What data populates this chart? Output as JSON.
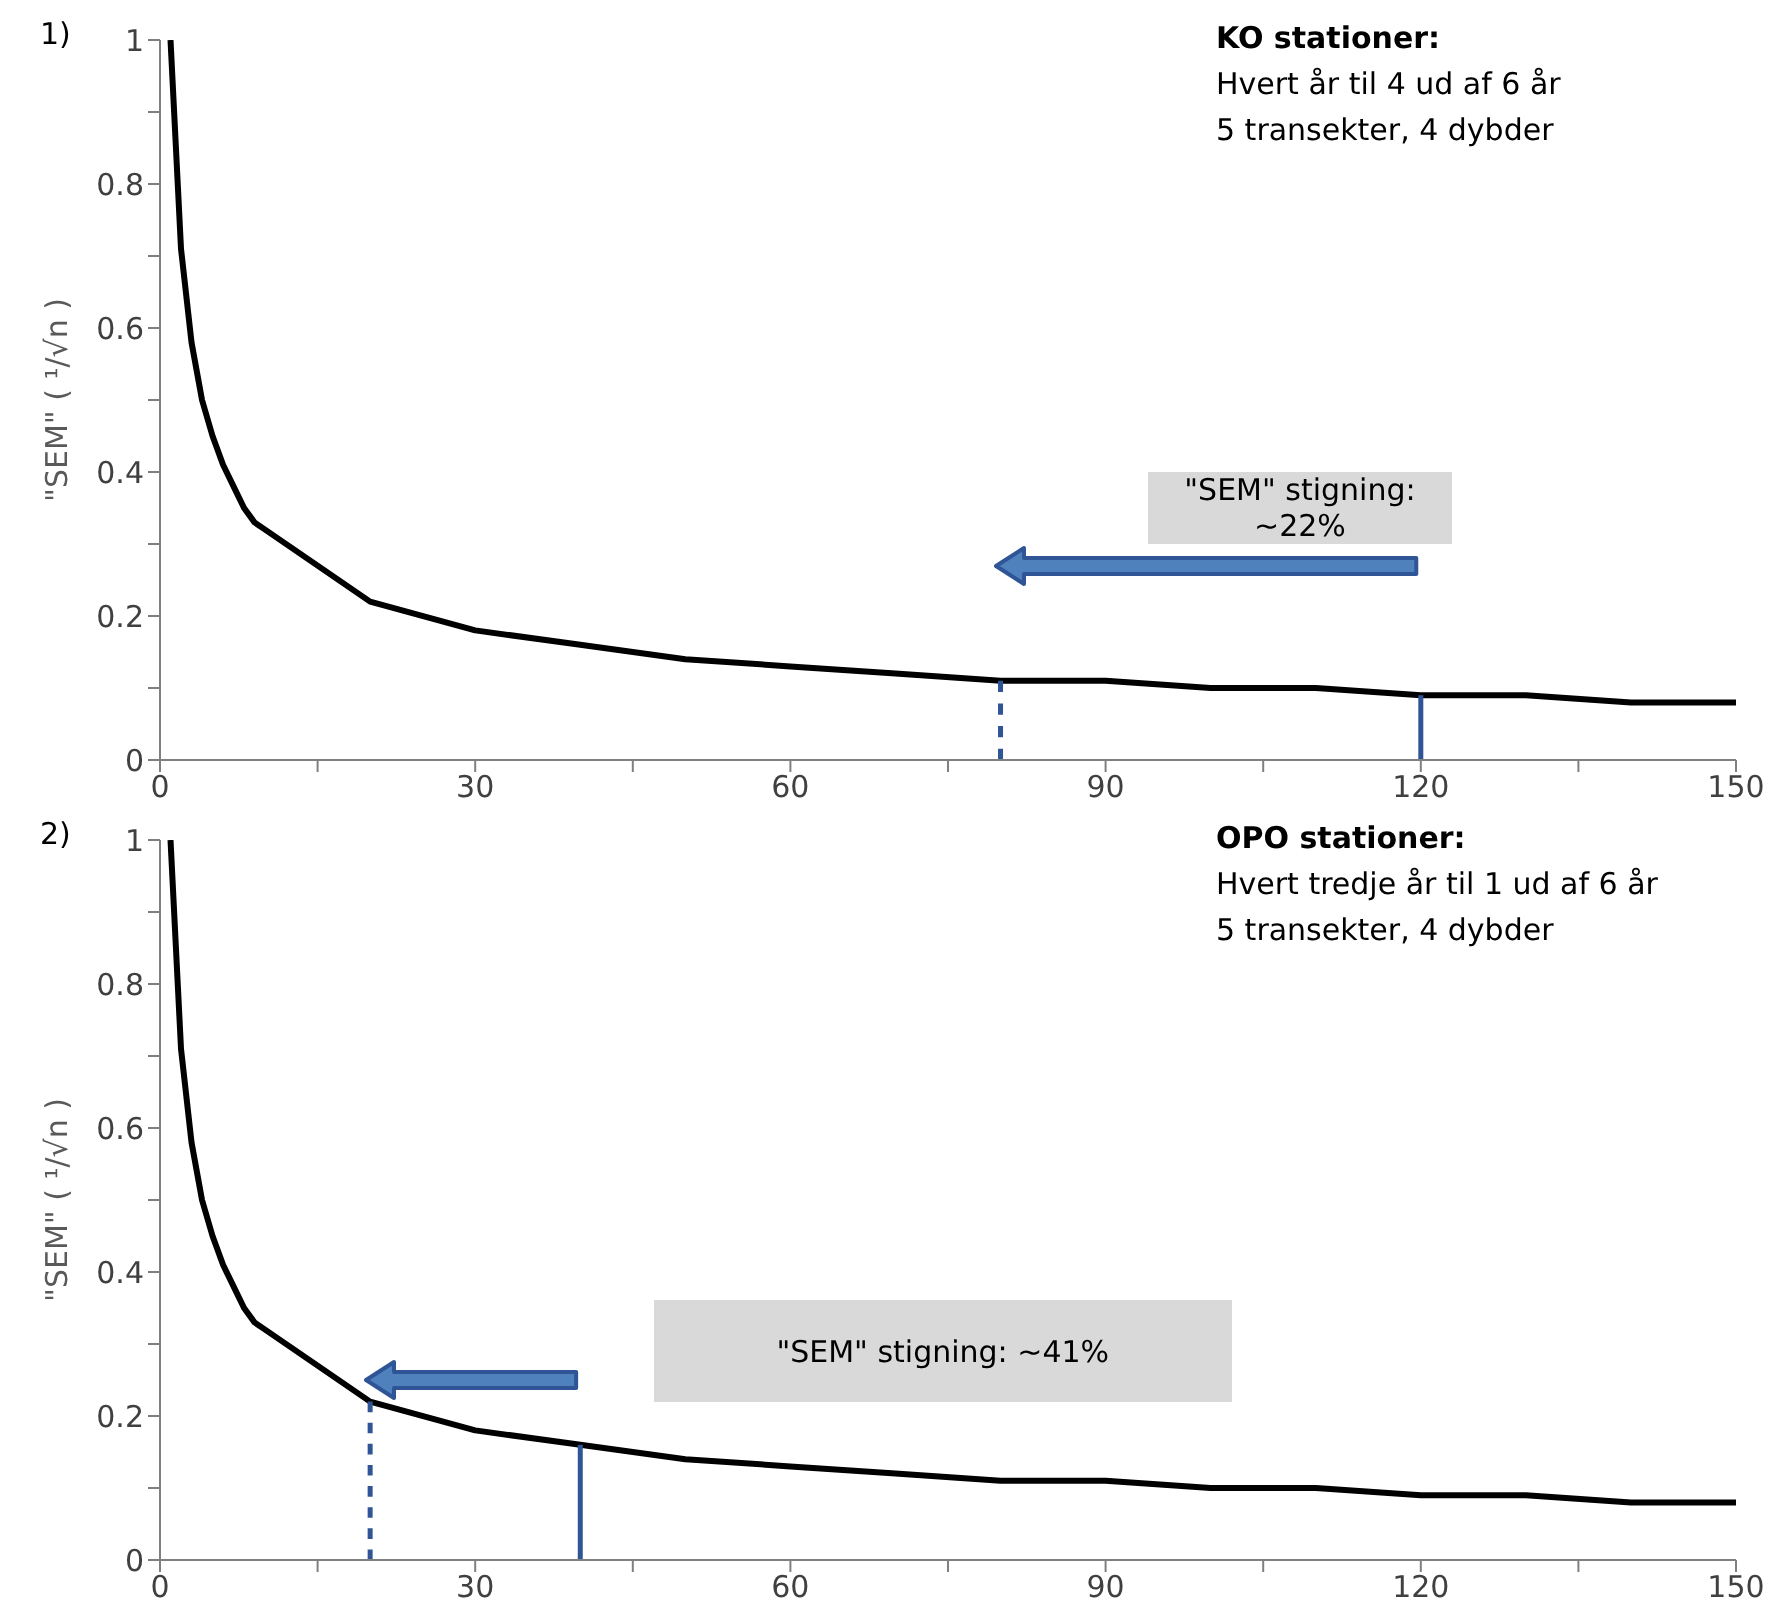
{
  "chart_data": [
    {
      "type": "line",
      "title": "KO stationer:",
      "ylabel": "\"SEM\" ( ¹/√n )",
      "annotations": [
        "1)",
        "Hvert år til 4 ud af 6 år",
        "5 transekter, 4 dybder",
        "\"SEM\" stigning: ~22%"
      ],
      "series": [
        {
          "color": "#000000",
          "x": [
            1,
            2,
            3,
            4,
            5,
            6,
            7,
            8,
            9,
            10,
            20,
            30,
            40,
            50,
            60,
            70,
            80,
            90,
            100,
            110,
            120,
            130,
            140,
            150
          ],
          "values": [
            1,
            0.71,
            0.58,
            0.5,
            0.45,
            0.41,
            0.38,
            0.35,
            0.33,
            0.32,
            0.22,
            0.18,
            0.16,
            0.14,
            0.13,
            0.12,
            0.11,
            0.11,
            0.1,
            0.1,
            0.09,
            0.09,
            0.08,
            0.08
          ]
        },
        {
          "color": "#2f5597",
          "x": [
            80,
            80
          ],
          "values": [
            0,
            0.11
          ],
          "line_style": "dashed"
        },
        {
          "color": "#2f5597",
          "x": [
            120,
            120
          ],
          "values": [
            0,
            0.09
          ],
          "line_style": "solid"
        }
      ],
      "xlim": [
        0,
        150
      ],
      "xticks": [
        0,
        {
          "value": 15,
          "label": null
        },
        30,
        {
          "value": 45,
          "label": null
        },
        60,
        {
          "value": 75,
          "label": null
        },
        90,
        {
          "value": 105,
          "label": null
        },
        120,
        {
          "value": 135,
          "label": null
        },
        150
      ],
      "ylim": [
        0,
        1
      ],
      "yticks": [
        0,
        {
          "value": 0.1,
          "label": null
        },
        0.2,
        {
          "value": 0.3,
          "label": null
        },
        0.4,
        {
          "value": 0.5,
          "label": null
        },
        0.6,
        {
          "value": 0.7,
          "label": null
        },
        0.8,
        {
          "value": 0.9,
          "label": null
        },
        1
      ],
      "grid": false,
      "legend": false,
      "marker": "none"
    },
    {
      "type": "line",
      "title": "OPO stationer:",
      "ylabel": "\"SEM\" ( ¹/√n )",
      "annotations": [
        "2)",
        "Hvert tredje år til 1 ud af 6 år",
        "5 transekter, 4 dybder",
        "\"SEM\" stigning: ~41%"
      ],
      "series": [
        {
          "color": "#000000",
          "x": [
            1,
            2,
            3,
            4,
            5,
            6,
            7,
            8,
            9,
            10,
            20,
            30,
            40,
            50,
            60,
            70,
            80,
            90,
            100,
            110,
            120,
            130,
            140,
            150
          ],
          "values": [
            1,
            0.71,
            0.58,
            0.5,
            0.45,
            0.41,
            0.38,
            0.35,
            0.33,
            0.32,
            0.22,
            0.18,
            0.16,
            0.14,
            0.13,
            0.12,
            0.11,
            0.11,
            0.1,
            0.1,
            0.09,
            0.09,
            0.08,
            0.08
          ]
        },
        {
          "color": "#2f5597",
          "x": [
            20,
            20
          ],
          "values": [
            0,
            0.22
          ],
          "line_style": "dashed"
        },
        {
          "color": "#2f5597",
          "x": [
            40,
            40
          ],
          "values": [
            0,
            0.16
          ],
          "line_style": "solid"
        }
      ],
      "xlim": [
        0,
        150
      ],
      "xticks": [
        0,
        {
          "value": 15,
          "label": null
        },
        30,
        {
          "value": 45,
          "label": null
        },
        60,
        {
          "value": 75,
          "label": null
        },
        90,
        {
          "value": 105,
          "label": null
        },
        120,
        {
          "value": 135,
          "label": null
        },
        150
      ],
      "ylim": [
        0,
        1
      ],
      "yticks": [
        0,
        {
          "value": 0.1,
          "label": null
        },
        0.2,
        {
          "value": 0.3,
          "label": null
        },
        0.4,
        {
          "value": 0.5,
          "label": null
        },
        0.6,
        {
          "value": 0.7,
          "label": null
        },
        0.8,
        {
          "value": 0.9,
          "label": null
        },
        1
      ],
      "grid": false,
      "legend": false,
      "marker": "none"
    }
  ]
}
